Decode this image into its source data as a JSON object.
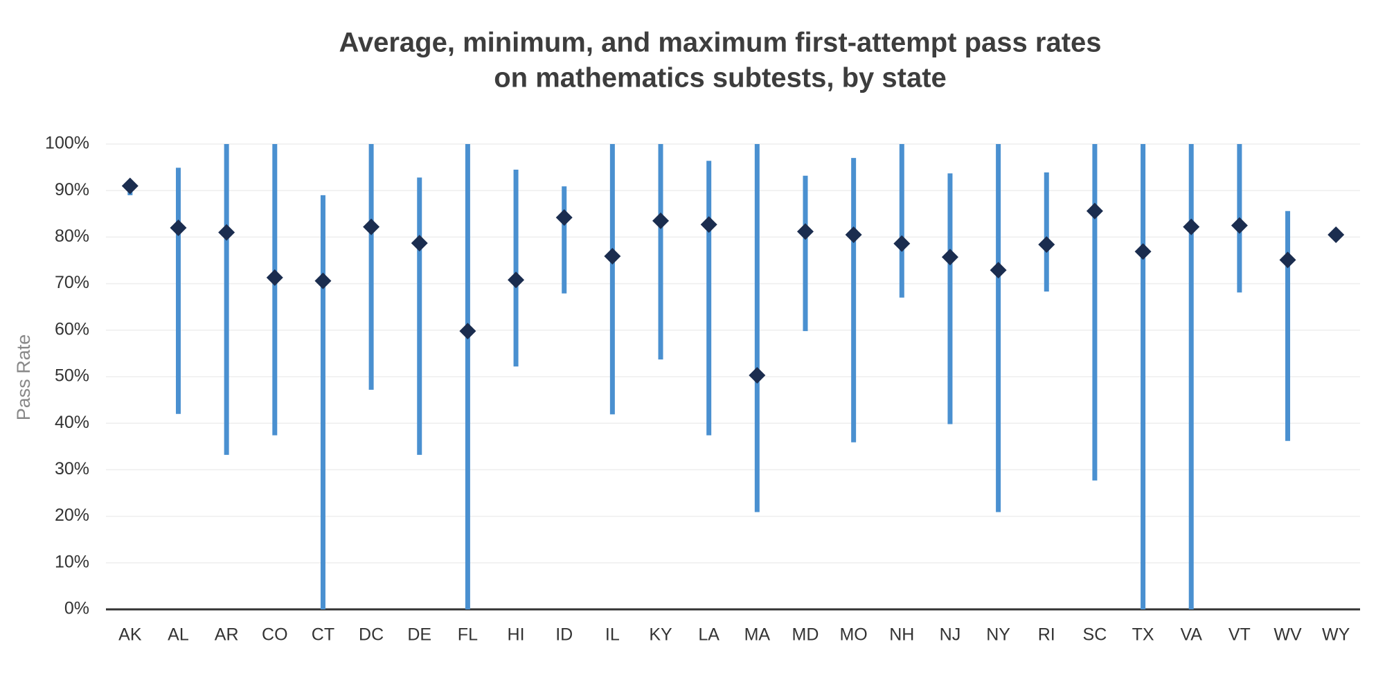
{
  "chart_data": {
    "type": "dot_range",
    "title": [
      "Average, minimum, and maximum first-attempt pass rates",
      "on mathematics subtests, by state"
    ],
    "y_label": "Pass Rate",
    "categories": [
      "AK",
      "AL",
      "AR",
      "CO",
      "CT",
      "DC",
      "DE",
      "FL",
      "HI",
      "ID",
      "IL",
      "KY",
      "LA",
      "MA",
      "MD",
      "MO",
      "NH",
      "NJ",
      "NY",
      "RI",
      "SC",
      "TX",
      "VA",
      "VT",
      "WV",
      "WY"
    ],
    "series": [
      {
        "name": "Average",
        "color": "#1b2d4f",
        "values": [
          91,
          82,
          81,
          71.3,
          70.6,
          82.2,
          78.7,
          59.8,
          70.8,
          84.2,
          75.9,
          83.5,
          82.7,
          50.3,
          81.2,
          80.5,
          78.6,
          75.7,
          72.9,
          78.4,
          85.6,
          76.9,
          82.2,
          82.5,
          75.1,
          80.5
        ]
      },
      {
        "name": "Minimum",
        "color": "#4a90d0",
        "values": [
          89,
          42,
          33.2,
          37.4,
          0,
          47.2,
          33.2,
          0,
          52.2,
          67.9,
          41.9,
          53.7,
          37.4,
          20.9,
          59.8,
          35.9,
          67,
          39.8,
          20.9,
          68.3,
          27.7,
          0,
          0,
          68.1,
          36.2,
          80.5
        ]
      },
      {
        "name": "Maximum",
        "color": "#4a90d0",
        "values": [
          91,
          94.9,
          100,
          100,
          89,
          100,
          92.8,
          100,
          94.5,
          90.9,
          100,
          100,
          96.4,
          100,
          93.2,
          97,
          100,
          93.7,
          100,
          93.9,
          100,
          100,
          100,
          100,
          85.6,
          80.5
        ]
      }
    ],
    "ylim": [
      0,
      100
    ],
    "yticks": [
      {
        "value": 0,
        "label": "0%"
      },
      {
        "value": 10,
        "label": "10%"
      },
      {
        "value": 20,
        "label": "20%"
      },
      {
        "value": 30,
        "label": "30%"
      },
      {
        "value": 40,
        "label": "40%"
      },
      {
        "value": 50,
        "label": "50%"
      },
      {
        "value": 60,
        "label": "60%"
      },
      {
        "value": 70,
        "label": "70%"
      },
      {
        "value": 80,
        "label": "80%"
      },
      {
        "value": 90,
        "label": "90%"
      },
      {
        "value": 100,
        "label": "100%"
      }
    ],
    "grid": true
  }
}
